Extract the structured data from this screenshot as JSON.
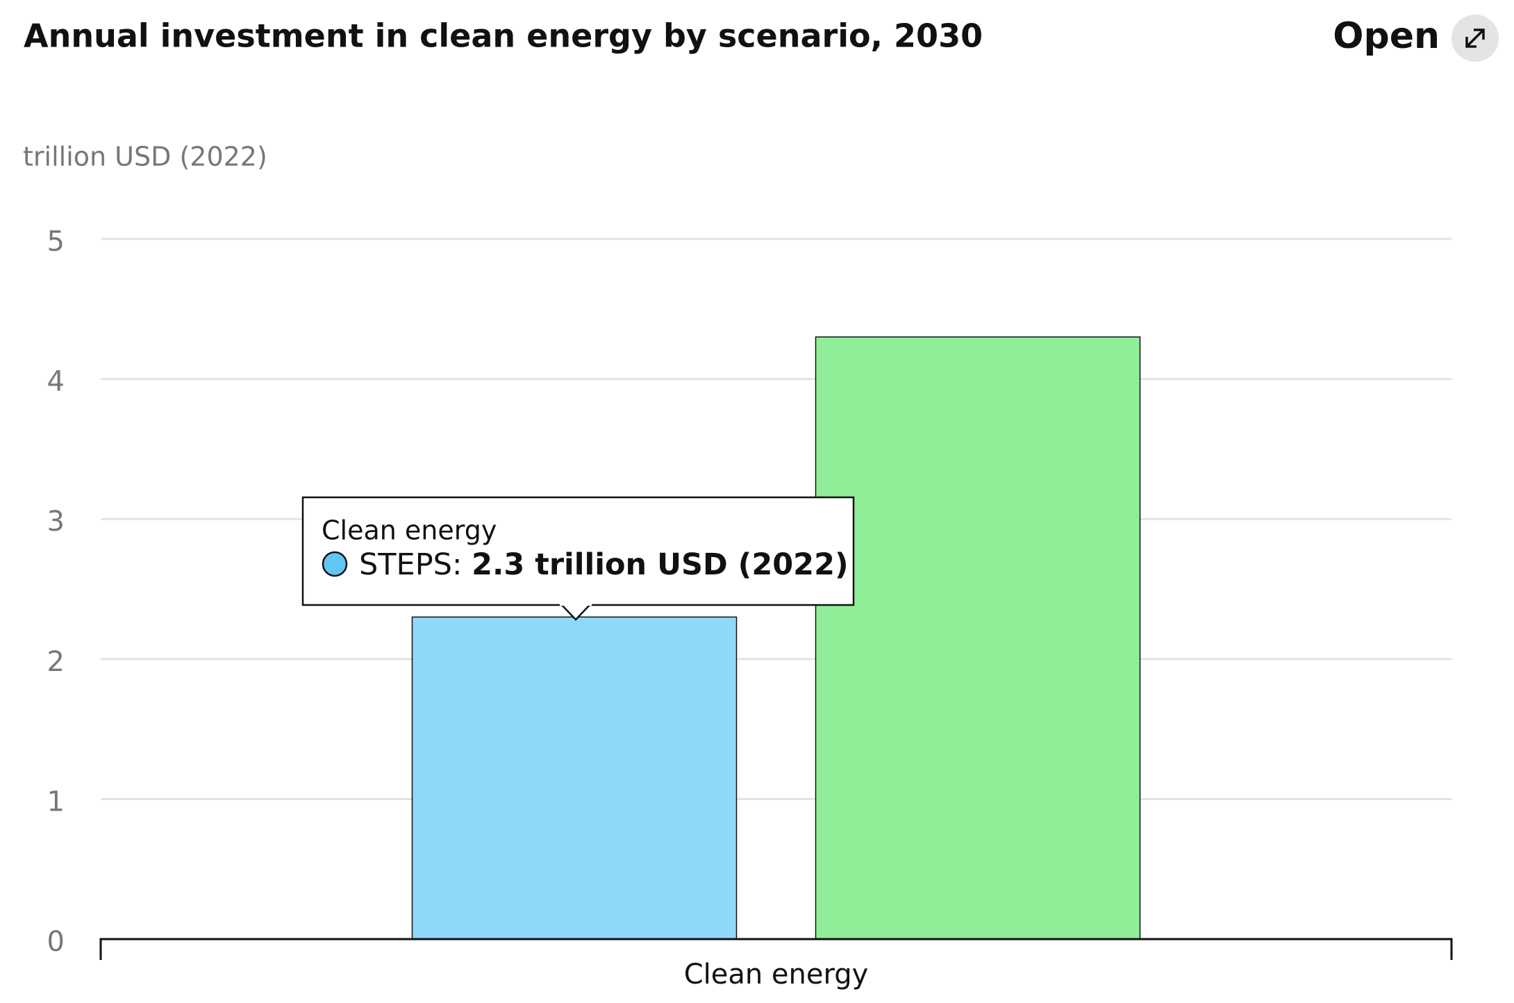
{
  "header": {
    "button": "Open"
  },
  "chart_data": {
    "type": "bar",
    "title": "Annual investment in clean energy by scenario, 2030",
    "y_label": "trillion USD (2022)",
    "categories": [
      "Clean energy"
    ],
    "series": [
      {
        "color": "#8fd9f8",
        "values": [
          2.3
        ]
      },
      {
        "color": "#90ee98",
        "values": [
          4.3
        ]
      }
    ],
    "tooltip": {
      "title": "Clean energy",
      "label": "STEPS:",
      "value": "2.3 trillion USD (2022)"
    },
    "ylim": [
      0,
      5
    ],
    "yticks": [
      0,
      1,
      2,
      3,
      4,
      5
    ],
    "grid": true
  }
}
